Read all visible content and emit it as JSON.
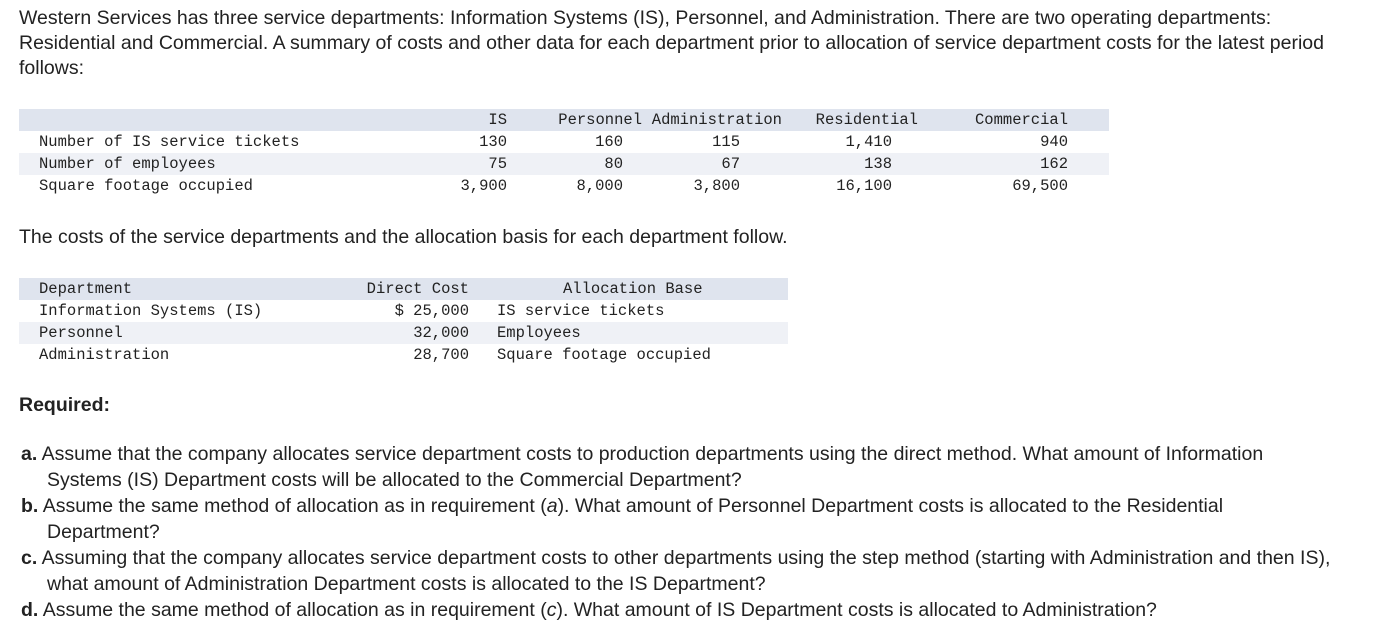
{
  "intro": "Western Services has three service departments: Information Systems (IS), Personnel, and Administration. There are two operating departments: Residential and Commercial. A summary of costs and other data for each department prior to allocation of service department costs for the latest period follows:",
  "stats_table": {
    "headers": [
      "",
      "IS",
      "Personnel",
      "Administration",
      "Residential",
      "Commercial"
    ],
    "rows": [
      {
        "label": "Number of IS service tickets",
        "values": [
          "130",
          "160",
          "115",
          "1,410",
          "940"
        ]
      },
      {
        "label": "Number of employees",
        "values": [
          "75",
          "80",
          "67",
          "138",
          "162"
        ]
      },
      {
        "label": "Square footage occupied",
        "values": [
          "3,900",
          "8,000",
          "3,800",
          "16,100",
          "69,500"
        ]
      }
    ]
  },
  "costs_intro": "The costs of the service departments and the allocation basis for each department follow.",
  "cost_table": {
    "headers": [
      "Department",
      "Direct Cost",
      "Allocation Base"
    ],
    "rows": [
      {
        "department": "Information Systems (IS)",
        "cost": "$ 25,000",
        "base": "IS service tickets"
      },
      {
        "department": "Personnel",
        "cost": "32,000",
        "base": "Employees"
      },
      {
        "department": "Administration",
        "cost": "28,700",
        "base": "Square footage occupied"
      }
    ]
  },
  "required_heading": "Required:",
  "questions": [
    {
      "label": "a.",
      "text_before": "Assume that the company allocates service department costs to production departments using the direct method. What amount of Information Systems (IS) Department costs will be allocated to the Commercial Department?",
      "ref": "",
      "text_after": ""
    },
    {
      "label": "b.",
      "text_before": "Assume the same method of allocation as in requirement (",
      "ref": "a",
      "text_after": "). What amount of Personnel Department costs is allocated to the Residential Department?"
    },
    {
      "label": "c.",
      "text_before": "Assuming that the company allocates service department costs to other departments using the step method (starting with Administration and then IS), what amount of Administration Department costs is allocated to the IS Department?",
      "ref": "",
      "text_after": ""
    },
    {
      "label": "d.",
      "text_before": "Assume the same method of allocation as in requirement (",
      "ref": "c",
      "text_after": "). What amount of IS Department costs is allocated to Administration?"
    }
  ]
}
